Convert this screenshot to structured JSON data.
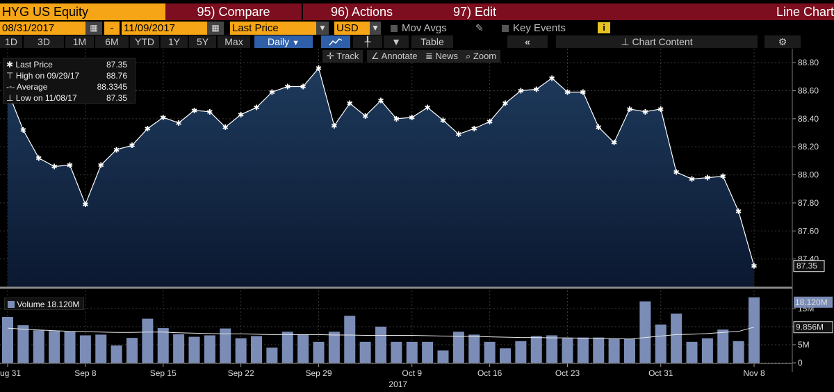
{
  "header": {
    "ticker": "HYG US Equity",
    "compare": "95) Compare",
    "actions": "96) Actions",
    "edit": "97) Edit",
    "chart_type": "Line Chart"
  },
  "controls": {
    "start_date": "08/31/2017",
    "dash": "-",
    "end_date": "11/09/2017",
    "field": "Last Price",
    "currency": "USD",
    "mov_avgs": "Mov Avgs",
    "key_events": "Key Events",
    "info_badge": "i"
  },
  "ranges": [
    "1D",
    "3D",
    "1M",
    "6M",
    "YTD",
    "1Y",
    "5Y",
    "Max"
  ],
  "frequency": "Daily",
  "table_label": "Table",
  "chart_content_label": "Chart Content",
  "toolbar": {
    "track": "Track",
    "annotate": "Annotate",
    "news": "News",
    "zoom": "Zoom"
  },
  "legend": {
    "last_price_label": "Last Price",
    "last_price_value": "87.35",
    "high_label": "High on 09/29/17",
    "high_value": "88.76",
    "avg_label": "Average",
    "avg_value": "88.3345",
    "low_label": "Low on 11/08/17",
    "low_value": "87.35"
  },
  "volume_legend": {
    "label": "Volume",
    "value": "18.120M"
  },
  "colors": {
    "orange": "#f5a515",
    "maroon": "#7d0e1f",
    "line": "#ffffff",
    "volume_bar": "#7b8db6",
    "area_top": "#1e3a5c",
    "area_bottom": "#0b1830"
  },
  "chart_data": [
    {
      "type": "area",
      "title": "HYG US Equity Last Price",
      "x": [
        "08/31/17",
        "09/01/17",
        "09/05/17",
        "09/06/17",
        "09/07/17",
        "09/08/17",
        "09/11/17",
        "09/12/17",
        "09/13/17",
        "09/14/17",
        "09/15/17",
        "09/18/17",
        "09/19/17",
        "09/20/17",
        "09/21/17",
        "09/22/17",
        "09/25/17",
        "09/26/17",
        "09/27/17",
        "09/28/17",
        "09/29/17",
        "10/02/17",
        "10/03/17",
        "10/04/17",
        "10/05/17",
        "10/06/17",
        "10/09/17",
        "10/10/17",
        "10/11/17",
        "10/12/17",
        "10/13/17",
        "10/16/17",
        "10/17/17",
        "10/18/17",
        "10/19/17",
        "10/20/17",
        "10/23/17",
        "10/24/17",
        "10/25/17",
        "10/26/17",
        "10/27/17",
        "10/30/17",
        "10/31/17",
        "11/01/17",
        "11/02/17",
        "11/03/17",
        "11/06/17",
        "11/07/17",
        "11/08/17"
      ],
      "y": [
        88.6,
        88.32,
        88.12,
        88.06,
        88.07,
        87.79,
        88.07,
        88.18,
        88.21,
        88.33,
        88.41,
        88.37,
        88.46,
        88.45,
        88.34,
        88.43,
        88.48,
        88.59,
        88.63,
        88.63,
        88.76,
        88.35,
        88.51,
        88.42,
        88.53,
        88.4,
        88.41,
        88.48,
        88.39,
        88.29,
        88.33,
        88.38,
        88.51,
        88.6,
        88.61,
        88.69,
        88.59,
        88.59,
        88.34,
        88.23,
        88.47,
        88.45,
        88.47,
        88.02,
        87.97,
        87.98,
        87.99,
        87.74,
        87.35
      ],
      "ylim": [
        87.2,
        88.9
      ],
      "yticks": [
        "87.40",
        "87.60",
        "87.80",
        "88.00",
        "88.20",
        "88.40",
        "88.60",
        "88.80"
      ],
      "last_value_label": "87.35",
      "grid": true
    },
    {
      "type": "bar",
      "title": "Volume",
      "x": [
        "08/31/17",
        "09/01/17",
        "09/05/17",
        "09/06/17",
        "09/07/17",
        "09/08/17",
        "09/11/17",
        "09/12/17",
        "09/13/17",
        "09/14/17",
        "09/15/17",
        "09/18/17",
        "09/19/17",
        "09/20/17",
        "09/21/17",
        "09/22/17",
        "09/25/17",
        "09/26/17",
        "09/27/17",
        "09/28/17",
        "09/29/17",
        "10/02/17",
        "10/03/17",
        "10/04/17",
        "10/05/17",
        "10/06/17",
        "10/09/17",
        "10/10/17",
        "10/11/17",
        "10/12/17",
        "10/13/17",
        "10/16/17",
        "10/17/17",
        "10/18/17",
        "10/19/17",
        "10/20/17",
        "10/23/17",
        "10/24/17",
        "10/25/17",
        "10/26/17",
        "10/27/17",
        "10/30/17",
        "10/31/17",
        "11/01/17",
        "11/02/17",
        "11/03/17",
        "11/06/17",
        "11/07/17",
        "11/08/17"
      ],
      "values": [
        12.7,
        10.4,
        9.0,
        8.8,
        8.6,
        7.6,
        7.8,
        4.8,
        6.9,
        12.2,
        9.6,
        7.9,
        7.2,
        7.6,
        9.5,
        6.8,
        7.4,
        4.2,
        8.6,
        7.8,
        5.8,
        8.6,
        13.0,
        5.8,
        10.0,
        5.8,
        5.8,
        5.8,
        3.4,
        8.6,
        7.8,
        5.8,
        4.0,
        6.0,
        7.4,
        7.6,
        6.8,
        7.0,
        7.0,
        6.6,
        6.6,
        17.0,
        10.6,
        13.6,
        5.8,
        6.8,
        9.2,
        6.0,
        18.12
      ],
      "moving_avg": [
        9.6,
        9.3,
        9.1,
        8.9,
        8.7,
        8.6,
        8.5,
        8.4,
        8.4,
        8.5,
        8.5,
        8.3,
        8.2,
        8.1,
        8.0,
        8.0,
        7.9,
        7.8,
        7.8,
        7.8,
        7.8,
        7.7,
        7.7,
        7.6,
        7.6,
        7.6,
        7.6,
        7.5,
        7.4,
        7.3,
        7.3,
        7.2,
        7.1,
        7.0,
        7.0,
        6.9,
        6.9,
        6.8,
        6.8,
        6.7,
        6.6,
        7.0,
        7.4,
        7.8,
        7.9,
        8.1,
        8.4,
        8.7,
        9.856
      ],
      "ylim": [
        0,
        20
      ],
      "yticks": [
        "0",
        "5M",
        "10M",
        "15M"
      ],
      "ma_label": "9.856M",
      "last_label": "18.120M"
    }
  ],
  "x_axis": {
    "ticks": [
      "Aug 31",
      "Sep 8",
      "Sep 15",
      "Sep 22",
      "Sep 29",
      "Oct 9",
      "Oct 16",
      "Oct 23",
      "Oct 31",
      "Nov 8"
    ],
    "tick_index": [
      0,
      5,
      10,
      15,
      20,
      26,
      31,
      36,
      42,
      48
    ],
    "year": "2017"
  }
}
